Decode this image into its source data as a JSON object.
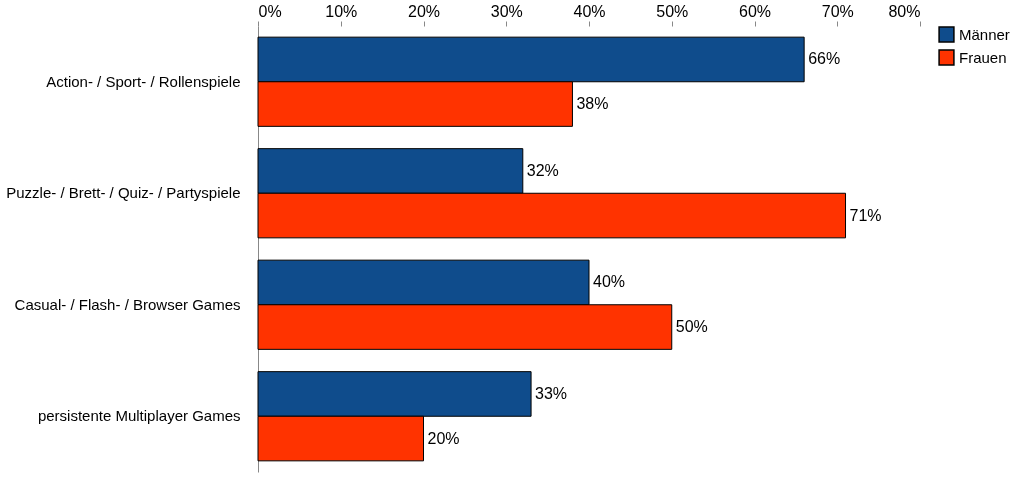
{
  "chart_data": {
    "type": "bar",
    "orientation": "horizontal",
    "categories": [
      "Action- / Sport- / Rollenspiele",
      "Puzzle- / Brett- / Quiz- / Partyspiele",
      "Casual- / Flash- / Browser Games",
      "persistente Multiplayer Games"
    ],
    "series": [
      {
        "name": "Männer",
        "color": "#0f4c8c",
        "values": [
          66,
          32,
          40,
          33
        ],
        "value_labels": [
          "66%",
          "32%",
          "40%",
          "33%"
        ]
      },
      {
        "name": "Frauen",
        "color": "#ff3300",
        "values": [
          38,
          71,
          50,
          20
        ],
        "value_labels": [
          "38%",
          "71%",
          "50%",
          "20%"
        ]
      }
    ],
    "xlim": [
      0,
      80
    ],
    "xticks": [
      {
        "value": 0,
        "label": "0%"
      },
      {
        "value": 10,
        "label": "10%"
      },
      {
        "value": 20,
        "label": "20%"
      },
      {
        "value": 30,
        "label": "30%"
      },
      {
        "value": 40,
        "label": "40%"
      },
      {
        "value": 50,
        "label": "50%"
      },
      {
        "value": 60,
        "label": "60%"
      },
      {
        "value": 70,
        "label": "70%"
      },
      {
        "value": 80,
        "label": "80%"
      }
    ],
    "grid": false,
    "legend": "right"
  }
}
